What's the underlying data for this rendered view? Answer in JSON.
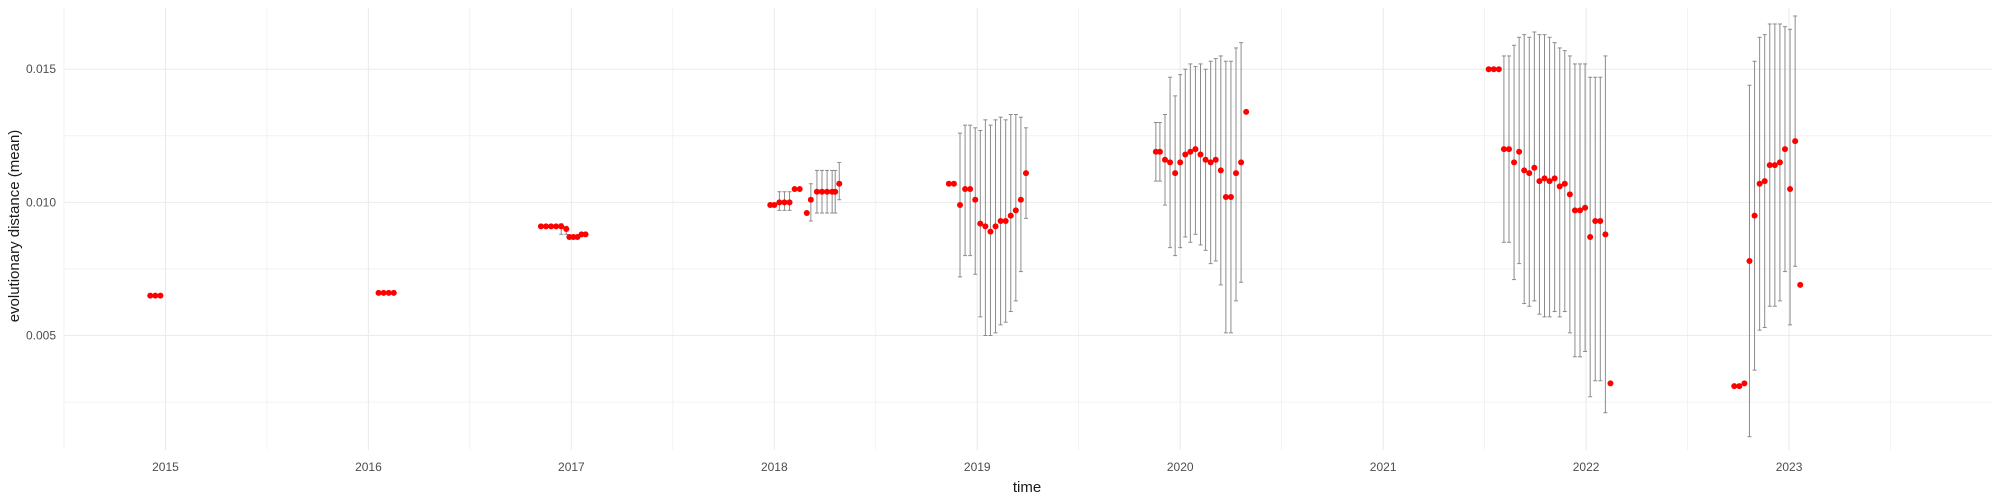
{
  "chart_data": {
    "type": "scatter",
    "title": "",
    "xlabel": "time",
    "ylabel": "evolutionary distance (mean)",
    "x_ticks": [
      "2015",
      "2016",
      "2017",
      "2018",
      "2019",
      "2020",
      "2021",
      "2022",
      "2023"
    ],
    "y_ticks": [
      "0.005",
      "0.010",
      "0.015"
    ],
    "xlim": [
      2014.5,
      2024.0
    ],
    "ylim": [
      0.0007,
      0.0173
    ],
    "grid": true,
    "point_color": "#ff0000",
    "error_bar_color": "#8c8c8c",
    "grid_color": "#ebebeb",
    "series": [
      {
        "points": [
          {
            "x": 2014.925,
            "y": 0.0065
          },
          {
            "x": 2014.95,
            "y": 0.0065
          },
          {
            "x": 2014.975,
            "y": 0.0065
          },
          {
            "x": 2016.05,
            "y": 0.0066
          },
          {
            "x": 2016.075,
            "y": 0.0066
          },
          {
            "x": 2016.1,
            "y": 0.0066
          },
          {
            "x": 2016.125,
            "y": 0.0066
          },
          {
            "x": 2016.85,
            "y": 0.0091
          },
          {
            "x": 2016.875,
            "y": 0.0091
          },
          {
            "x": 2016.9,
            "y": 0.0091
          },
          {
            "x": 2016.925,
            "y": 0.0091
          },
          {
            "x": 2016.95,
            "y": 0.0091,
            "lo": 0.0088,
            "hi": 0.0092
          },
          {
            "x": 2016.975,
            "y": 0.009,
            "lo": 0.0088,
            "hi": 0.0091
          },
          {
            "x": 2016.99,
            "y": 0.0087
          },
          {
            "x": 2017.01,
            "y": 0.0087
          },
          {
            "x": 2017.03,
            "y": 0.0087
          },
          {
            "x": 2017.05,
            "y": 0.0088
          },
          {
            "x": 2017.07,
            "y": 0.0088
          },
          {
            "x": 2017.98,
            "y": 0.0099
          },
          {
            "x": 2018.0,
            "y": 0.0099
          },
          {
            "x": 2018.025,
            "y": 0.01,
            "lo": 0.0097,
            "hi": 0.0104
          },
          {
            "x": 2018.05,
            "y": 0.01,
            "lo": 0.0097,
            "hi": 0.0104
          },
          {
            "x": 2018.075,
            "y": 0.01,
            "lo": 0.0097,
            "hi": 0.0104
          },
          {
            "x": 2018.1,
            "y": 0.0105
          },
          {
            "x": 2018.125,
            "y": 0.0105
          },
          {
            "x": 2018.16,
            "y": 0.0096
          },
          {
            "x": 2018.18,
            "y": 0.0101,
            "lo": 0.0093,
            "hi": 0.0107
          },
          {
            "x": 2018.21,
            "y": 0.0104,
            "lo": 0.0096,
            "hi": 0.0112
          },
          {
            "x": 2018.235,
            "y": 0.0104,
            "lo": 0.0096,
            "hi": 0.0112
          },
          {
            "x": 2018.26,
            "y": 0.0104,
            "lo": 0.0096,
            "hi": 0.0112
          },
          {
            "x": 2018.285,
            "y": 0.0104,
            "lo": 0.0096,
            "hi": 0.0112
          },
          {
            "x": 2018.3,
            "y": 0.0104,
            "lo": 0.0096,
            "hi": 0.0112
          },
          {
            "x": 2018.32,
            "y": 0.0107,
            "lo": 0.0101,
            "hi": 0.0115
          },
          {
            "x": 2018.86,
            "y": 0.0107
          },
          {
            "x": 2018.885,
            "y": 0.0107
          },
          {
            "x": 2018.915,
            "y": 0.0099,
            "lo": 0.0072,
            "hi": 0.0126
          },
          {
            "x": 2018.94,
            "y": 0.0105,
            "lo": 0.008,
            "hi": 0.0129
          },
          {
            "x": 2018.965,
            "y": 0.0105,
            "lo": 0.008,
            "hi": 0.0129
          },
          {
            "x": 2018.99,
            "y": 0.0101,
            "lo": 0.0073,
            "hi": 0.0128
          },
          {
            "x": 2019.015,
            "y": 0.0092,
            "lo": 0.0057,
            "hi": 0.0127
          },
          {
            "x": 2019.04,
            "y": 0.0091,
            "lo": 0.005,
            "hi": 0.0131
          },
          {
            "x": 2019.065,
            "y": 0.0089,
            "lo": 0.005,
            "hi": 0.0129
          },
          {
            "x": 2019.09,
            "y": 0.0091,
            "lo": 0.0051,
            "hi": 0.0131
          },
          {
            "x": 2019.115,
            "y": 0.0093,
            "lo": 0.0054,
            "hi": 0.0132
          },
          {
            "x": 2019.14,
            "y": 0.0093,
            "lo": 0.0055,
            "hi": 0.0131
          },
          {
            "x": 2019.165,
            "y": 0.0095,
            "lo": 0.0059,
            "hi": 0.0133
          },
          {
            "x": 2019.19,
            "y": 0.0097,
            "lo": 0.0063,
            "hi": 0.0133
          },
          {
            "x": 2019.215,
            "y": 0.0101,
            "lo": 0.0074,
            "hi": 0.0132
          },
          {
            "x": 2019.24,
            "y": 0.0111,
            "lo": 0.0094,
            "hi": 0.0128
          },
          {
            "x": 2019.88,
            "y": 0.0119,
            "lo": 0.0108,
            "hi": 0.013
          },
          {
            "x": 2019.9,
            "y": 0.0119,
            "lo": 0.0108,
            "hi": 0.013
          },
          {
            "x": 2019.925,
            "y": 0.0116,
            "lo": 0.0099,
            "hi": 0.0133
          },
          {
            "x": 2019.95,
            "y": 0.0115,
            "lo": 0.0083,
            "hi": 0.0147
          },
          {
            "x": 2019.975,
            "y": 0.0111,
            "lo": 0.008,
            "hi": 0.014
          },
          {
            "x": 2020.0,
            "y": 0.0115,
            "lo": 0.0083,
            "hi": 0.0148
          },
          {
            "x": 2020.025,
            "y": 0.0118,
            "lo": 0.0087,
            "hi": 0.015
          },
          {
            "x": 2020.05,
            "y": 0.0119,
            "lo": 0.0085,
            "hi": 0.0152
          },
          {
            "x": 2020.075,
            "y": 0.012,
            "lo": 0.0088,
            "hi": 0.0151
          },
          {
            "x": 2020.1,
            "y": 0.0118,
            "lo": 0.0084,
            "hi": 0.0152
          },
          {
            "x": 2020.125,
            "y": 0.0116,
            "lo": 0.0082,
            "hi": 0.015
          },
          {
            "x": 2020.15,
            "y": 0.0115,
            "lo": 0.0077,
            "hi": 0.0153
          },
          {
            "x": 2020.175,
            "y": 0.0116,
            "lo": 0.0078,
            "hi": 0.0154
          },
          {
            "x": 2020.2,
            "y": 0.0112,
            "lo": 0.0069,
            "hi": 0.0155
          },
          {
            "x": 2020.225,
            "y": 0.0102,
            "lo": 0.0051,
            "hi": 0.0153
          },
          {
            "x": 2020.25,
            "y": 0.0102,
            "lo": 0.0051,
            "hi": 0.0153
          },
          {
            "x": 2020.275,
            "y": 0.0111,
            "lo": 0.0063,
            "hi": 0.0158
          },
          {
            "x": 2020.3,
            "y": 0.0115,
            "lo": 0.007,
            "hi": 0.016
          },
          {
            "x": 2020.325,
            "y": 0.0134
          },
          {
            "x": 2021.52,
            "y": 0.015
          },
          {
            "x": 2021.545,
            "y": 0.015
          },
          {
            "x": 2021.57,
            "y": 0.015
          },
          {
            "x": 2021.595,
            "y": 0.012,
            "lo": 0.0085,
            "hi": 0.0155
          },
          {
            "x": 2021.62,
            "y": 0.012,
            "lo": 0.0085,
            "hi": 0.0155
          },
          {
            "x": 2021.645,
            "y": 0.0115,
            "lo": 0.0071,
            "hi": 0.0159
          },
          {
            "x": 2021.67,
            "y": 0.0119,
            "lo": 0.0077,
            "hi": 0.0162
          },
          {
            "x": 2021.695,
            "y": 0.0112,
            "lo": 0.0062,
            "hi": 0.0163
          },
          {
            "x": 2021.72,
            "y": 0.0111,
            "lo": 0.0061,
            "hi": 0.0162
          },
          {
            "x": 2021.745,
            "y": 0.0113,
            "lo": 0.0063,
            "hi": 0.0164
          },
          {
            "x": 2021.77,
            "y": 0.0108,
            "lo": 0.0058,
            "hi": 0.0163
          },
          {
            "x": 2021.795,
            "y": 0.0109,
            "lo": 0.0057,
            "hi": 0.0163
          },
          {
            "x": 2021.82,
            "y": 0.0108,
            "lo": 0.0057,
            "hi": 0.0162
          },
          {
            "x": 2021.845,
            "y": 0.0109,
            "lo": 0.0059,
            "hi": 0.016
          },
          {
            "x": 2021.87,
            "y": 0.0106,
            "lo": 0.0057,
            "hi": 0.0158
          },
          {
            "x": 2021.895,
            "y": 0.0107,
            "lo": 0.0059,
            "hi": 0.0157
          },
          {
            "x": 2021.92,
            "y": 0.0103,
            "lo": 0.0051,
            "hi": 0.0155
          },
          {
            "x": 2021.945,
            "y": 0.0097,
            "lo": 0.0042,
            "hi": 0.0152
          },
          {
            "x": 2021.97,
            "y": 0.0097,
            "lo": 0.0042,
            "hi": 0.0152
          },
          {
            "x": 2021.995,
            "y": 0.0098,
            "lo": 0.0044,
            "hi": 0.0152
          },
          {
            "x": 2022.02,
            "y": 0.0087,
            "lo": 0.0027,
            "hi": 0.0147
          },
          {
            "x": 2022.045,
            "y": 0.0093,
            "lo": 0.0033,
            "hi": 0.0147
          },
          {
            "x": 2022.07,
            "y": 0.0093,
            "lo": 0.0033,
            "hi": 0.0147
          },
          {
            "x": 2022.095,
            "y": 0.0088,
            "lo": 0.0021,
            "hi": 0.0155
          },
          {
            "x": 2022.12,
            "y": 0.0032
          },
          {
            "x": 2022.73,
            "y": 0.0031
          },
          {
            "x": 2022.755,
            "y": 0.0031
          },
          {
            "x": 2022.78,
            "y": 0.0032
          },
          {
            "x": 2022.805,
            "y": 0.0078,
            "lo": 0.0012,
            "hi": 0.0144
          },
          {
            "x": 2022.83,
            "y": 0.0095,
            "lo": 0.0037,
            "hi": 0.0153
          },
          {
            "x": 2022.855,
            "y": 0.0107,
            "lo": 0.0052,
            "hi": 0.0162
          },
          {
            "x": 2022.88,
            "y": 0.0108,
            "lo": 0.0053,
            "hi": 0.0163
          },
          {
            "x": 2022.905,
            "y": 0.0114,
            "lo": 0.0061,
            "hi": 0.0167
          },
          {
            "x": 2022.93,
            "y": 0.0114,
            "lo": 0.0061,
            "hi": 0.0167
          },
          {
            "x": 2022.955,
            "y": 0.0115,
            "lo": 0.0063,
            "hi": 0.0167
          },
          {
            "x": 2022.98,
            "y": 0.012,
            "lo": 0.0074,
            "hi": 0.0166
          },
          {
            "x": 2023.005,
            "y": 0.0105,
            "lo": 0.0054,
            "hi": 0.0165
          },
          {
            "x": 2023.03,
            "y": 0.0123,
            "lo": 0.0076,
            "hi": 0.017
          },
          {
            "x": 2023.055,
            "y": 0.0069
          }
        ]
      }
    ]
  }
}
